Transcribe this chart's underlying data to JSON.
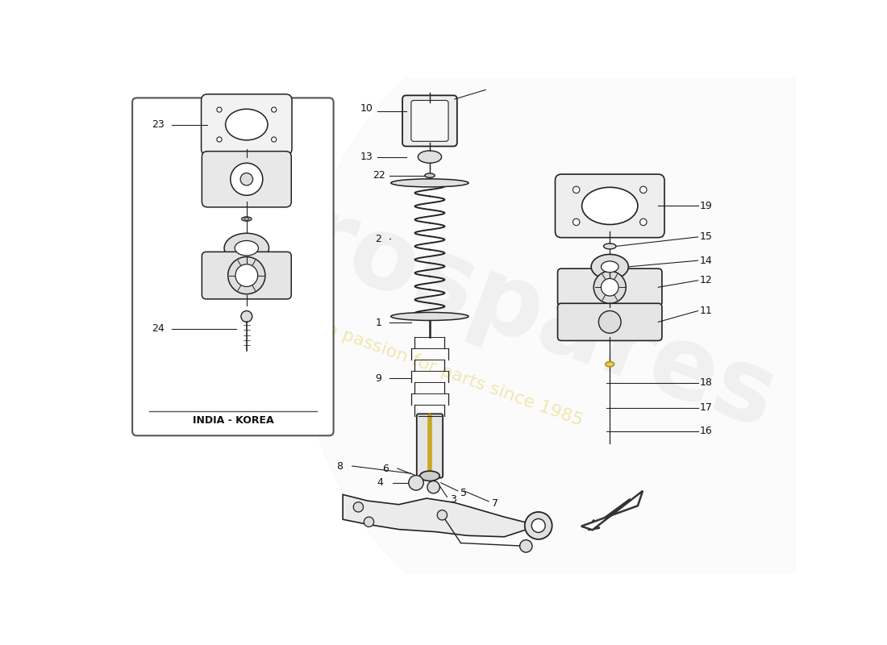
{
  "bg_color": "#ffffff",
  "india_korea_label": "INDIA - KOREA",
  "line_color": "#222222",
  "watermark_color2": "#e8d870",
  "box_edgecolor": "#555555"
}
